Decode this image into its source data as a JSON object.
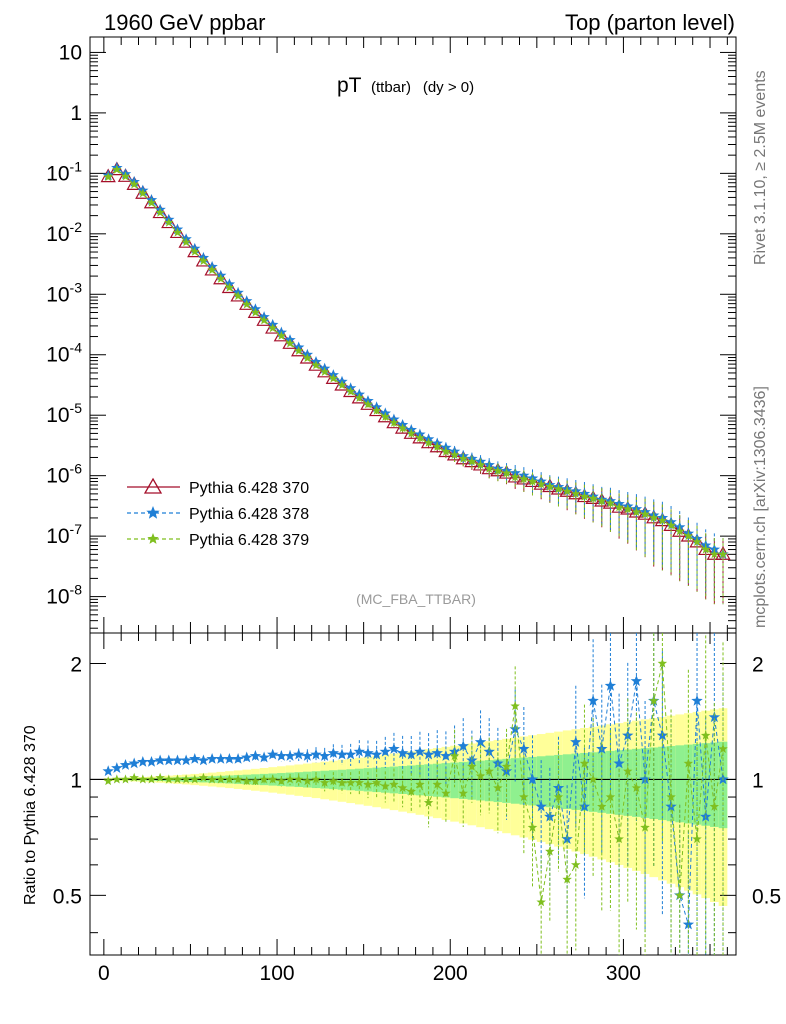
{
  "header": {
    "left": "1960 GeV ppbar",
    "right": "Top (parton level)"
  },
  "side_labels": {
    "rivet": "Rivet 3.1.10, ≥ 2.5M events",
    "mcplots": "mcplots.cern.ch [arXiv:1306.3436]"
  },
  "plot_title": {
    "main": "pT",
    "sub1": "(ttbar)",
    "sub2": "(dy > 0)"
  },
  "analysis_tag": "(MC_FBA_TTBAR)",
  "ratio_ylabel": "Ratio to Pythia 6.428 370",
  "colors": {
    "s370": "#a50f2a",
    "s378": "#1f7fd6",
    "s379": "#7fbf1f",
    "band_inner": "#8ff08f",
    "band_outer": "#ffff99"
  },
  "chart_data": [
    {
      "type": "line",
      "scale": "log",
      "xlim": [
        -8,
        365
      ],
      "ylim": [
        2.5e-09,
        18
      ],
      "x_ticks": [
        0,
        100,
        200,
        300
      ],
      "y_tick_labels": [
        "10",
        "1",
        "10^-1",
        "10^-2",
        "10^-3",
        "10^-4",
        "10^-5",
        "10^-6",
        "10^-7",
        "10^-8"
      ],
      "legend_placement": "bottom-left",
      "series": [
        {
          "name": "Pythia 6.428 370",
          "marker": "triangle",
          "x": [
            2.5,
            7.5,
            12.5,
            17.5,
            22.5,
            27.5,
            32.5,
            37.5,
            42.5,
            47.5,
            52.5,
            57.5,
            62.5,
            67.5,
            72.5,
            77.5,
            82.5,
            87.5,
            92.5,
            97.5,
            102.5,
            107.5,
            112.5,
            117.5,
            122.5,
            127.5,
            132.5,
            137.5,
            142.5,
            147.5,
            152.5,
            157.5,
            162.5,
            167.5,
            172.5,
            177.5,
            182.5,
            187.5,
            192.5,
            197.5,
            202.5,
            207.5,
            212.5,
            217.5,
            222.5,
            227.5,
            232.5,
            237.5,
            242.5,
            247.5,
            252.5,
            257.5,
            262.5,
            267.5,
            272.5,
            277.5,
            282.5,
            287.5,
            292.5,
            297.5,
            302.5,
            307.5,
            312.5,
            317.5,
            322.5,
            327.5,
            332.5,
            337.5,
            342.5,
            347.5,
            352.5,
            357.5
          ],
          "y": [
            0.088,
            0.115,
            0.089,
            0.0655,
            0.0467,
            0.0325,
            0.0224,
            0.0153,
            0.0105,
            0.00725,
            0.00505,
            0.00355,
            0.00252,
            0.0018,
            0.00129,
            0.000935,
            0.00068,
            0.0005,
            0.00037,
            0.000275,
            0.000205,
            0.000154,
            0.000116,
            8.8e-05,
            6.7e-05,
            5.2e-05,
            4.05e-05,
            3.15e-05,
            2.46e-05,
            1.93e-05,
            1.51e-05,
            1.19e-05,
            9.4e-06,
            7.5e-06,
            6.1e-06,
            5e-06,
            4.2e-06,
            3.5e-06,
            3e-06,
            2.5e-06,
            2.2e-06,
            1.9e-06,
            1.7e-06,
            1.5e-06,
            1.3e-06,
            1.2e-06,
            1.1e-06,
            9.5e-07,
            8.8e-07,
            8e-07,
            7.2e-07,
            6.6e-07,
            6e-07,
            5.5e-07,
            5e-07,
            4.5e-07,
            4.2e-07,
            3.8e-07,
            3.5e-07,
            3e-07,
            2.8e-07,
            2.5e-07,
            2.3e-07,
            2e-07,
            1.8e-07,
            1.5e-07,
            1.2e-07,
            1e-07,
            8e-08,
            6e-08,
            5e-08,
            5e-08
          ]
        },
        {
          "name": "Pythia 6.428 378",
          "marker": "star",
          "x": [
            2.5,
            7.5,
            12.5,
            17.5,
            22.5,
            27.5,
            32.5,
            37.5,
            42.5,
            47.5,
            52.5,
            57.5,
            62.5,
            67.5,
            72.5,
            77.5,
            82.5,
            87.5,
            92.5,
            97.5,
            102.5,
            107.5,
            112.5,
            117.5,
            122.5,
            127.5,
            132.5,
            137.5,
            142.5,
            147.5,
            152.5,
            157.5,
            162.5,
            167.5,
            172.5,
            177.5,
            182.5,
            187.5,
            192.5,
            197.5,
            202.5,
            207.5,
            212.5,
            217.5,
            222.5,
            227.5,
            232.5,
            237.5,
            242.5,
            247.5,
            252.5,
            257.5,
            262.5,
            267.5,
            272.5,
            277.5,
            282.5,
            287.5,
            292.5,
            297.5,
            302.5,
            307.5,
            312.5,
            317.5,
            322.5,
            327.5,
            332.5,
            337.5,
            342.5,
            347.5,
            352.5,
            357.5
          ],
          "y": [
            0.092,
            0.123,
            0.097,
            0.0722,
            0.0518,
            0.0362,
            0.025,
            0.0171,
            0.0118,
            0.00815,
            0.00568,
            0.004,
            0.00284,
            0.00203,
            0.00146,
            0.00106,
            0.00077,
            0.000567,
            0.00042,
            0.000312,
            0.000233,
            0.000175,
            0.000132,
            0.0001,
            7.6e-05,
            5.9e-05,
            4.6e-05,
            3.58e-05,
            2.8e-05,
            2.2e-05,
            1.72e-05,
            1.35e-05,
            1.07e-05,
            8.5e-06,
            6.9e-06,
            5.7e-06,
            4.8e-06,
            4e-06,
            3.4e-06,
            2.9e-06,
            2.5e-06,
            2.1e-06,
            1.9e-06,
            1.7e-06,
            1.5e-06,
            1.3e-06,
            1.2e-06,
            1.1e-06,
            1e-06,
            9e-07,
            8e-07,
            7e-07,
            6.5e-07,
            6e-07,
            5.5e-07,
            5e-07,
            4.5e-07,
            4e-07,
            3.8e-07,
            3.4e-07,
            3.1e-07,
            2.8e-07,
            2.5e-07,
            2.2e-07,
            2e-07,
            1.7e-07,
            1.4e-07,
            1.1e-07,
            9e-08,
            7e-08,
            6e-08,
            5e-08
          ]
        },
        {
          "name": "Pythia 6.428 379",
          "marker": "star",
          "x": [
            2.5,
            7.5,
            12.5,
            17.5,
            22.5,
            27.5,
            32.5,
            37.5,
            42.5,
            47.5,
            52.5,
            57.5,
            62.5,
            67.5,
            72.5,
            77.5,
            82.5,
            87.5,
            92.5,
            97.5,
            102.5,
            107.5,
            112.5,
            117.5,
            122.5,
            127.5,
            132.5,
            137.5,
            142.5,
            147.5,
            152.5,
            157.5,
            162.5,
            167.5,
            172.5,
            177.5,
            182.5,
            187.5,
            192.5,
            197.5,
            202.5,
            207.5,
            212.5,
            217.5,
            222.5,
            227.5,
            232.5,
            237.5,
            242.5,
            247.5,
            252.5,
            257.5,
            262.5,
            267.5,
            272.5,
            277.5,
            282.5,
            287.5,
            292.5,
            297.5,
            302.5,
            307.5,
            312.5,
            317.5,
            322.5,
            327.5,
            332.5,
            337.5,
            342.5,
            347.5,
            352.5,
            357.5
          ],
          "y": [
            0.087,
            0.115,
            0.089,
            0.0655,
            0.0467,
            0.0325,
            0.0224,
            0.0153,
            0.0105,
            0.00725,
            0.00505,
            0.00355,
            0.00252,
            0.0018,
            0.00129,
            0.000935,
            0.00068,
            0.0005,
            0.00037,
            0.000275,
            0.000205,
            0.000154,
            0.000116,
            8.8e-05,
            6.7e-05,
            5.2e-05,
            4.05e-05,
            3.15e-05,
            2.46e-05,
            1.93e-05,
            1.51e-05,
            1.19e-05,
            9.4e-06,
            7.5e-06,
            6.1e-06,
            5e-06,
            4.2e-06,
            3.5e-06,
            3e-06,
            2.5e-06,
            2.2e-06,
            1.9e-06,
            1.7e-06,
            1.5e-06,
            1.3e-06,
            1.2e-06,
            1.1e-06,
            9.5e-07,
            8.8e-07,
            8e-07,
            7.2e-07,
            6.6e-07,
            6e-07,
            5.5e-07,
            5e-07,
            4.5e-07,
            4.2e-07,
            3.8e-07,
            3.5e-07,
            3e-07,
            2.8e-07,
            2.5e-07,
            2.3e-07,
            2e-07,
            1.8e-07,
            1.5e-07,
            1.2e-07,
            1e-07,
            8e-08,
            6e-08,
            5e-08,
            5e-08
          ]
        }
      ]
    },
    {
      "type": "line",
      "scale": "log",
      "xlim": [
        -8,
        365
      ],
      "ylim": [
        0.35,
        2.4
      ],
      "ylabel": "Ratio to Pythia 6.428 370",
      "x_ticks": [
        0,
        100,
        200,
        300
      ],
      "y_ticks": [
        0.5,
        1,
        2
      ],
      "reference_line": 1,
      "series": [
        {
          "name": "Pythia 6.428 378",
          "x": [
            2.5,
            7.5,
            12.5,
            17.5,
            22.5,
            27.5,
            32.5,
            37.5,
            42.5,
            47.5,
            52.5,
            57.5,
            62.5,
            67.5,
            72.5,
            77.5,
            82.5,
            87.5,
            92.5,
            97.5,
            102.5,
            107.5,
            112.5,
            117.5,
            122.5,
            127.5,
            132.5,
            137.5,
            142.5,
            147.5,
            152.5,
            157.5,
            162.5,
            167.5,
            172.5,
            177.5,
            182.5,
            187.5,
            192.5,
            197.5,
            202.5,
            207.5,
            212.5,
            217.5,
            222.5,
            227.5,
            232.5,
            237.5,
            242.5,
            247.5,
            252.5,
            257.5,
            262.5,
            267.5,
            272.5,
            277.5,
            282.5,
            287.5,
            292.5,
            297.5,
            302.5,
            307.5,
            312.5,
            317.5,
            322.5,
            327.5,
            332.5,
            337.5,
            342.5,
            347.5,
            352.5,
            357.5
          ],
          "y": [
            1.05,
            1.07,
            1.09,
            1.1,
            1.11,
            1.11,
            1.12,
            1.12,
            1.12,
            1.12,
            1.13,
            1.12,
            1.13,
            1.13,
            1.13,
            1.13,
            1.14,
            1.15,
            1.14,
            1.16,
            1.15,
            1.15,
            1.16,
            1.15,
            1.16,
            1.15,
            1.17,
            1.16,
            1.16,
            1.18,
            1.17,
            1.16,
            1.18,
            1.2,
            1.17,
            1.16,
            1.18,
            1.16,
            1.17,
            1.15,
            1.18,
            1.22,
            1.12,
            1.25,
            1.18,
            1.1,
            1.05,
            1.35,
            1.2,
            1.0,
            0.85,
            0.8,
            0.95,
            0.7,
            1.25,
            0.85,
            1.6,
            1.2,
            1.75,
            1.1,
            1.3,
            1.8,
            1.0,
            1.6,
            1.3,
            0.85,
            0.5,
            0.42,
            1.6,
            0.8,
            1.45,
            1.0
          ]
        },
        {
          "name": "Pythia 6.428 379",
          "x": [
            2.5,
            7.5,
            12.5,
            17.5,
            22.5,
            27.5,
            32.5,
            37.5,
            42.5,
            47.5,
            52.5,
            57.5,
            62.5,
            67.5,
            72.5,
            77.5,
            82.5,
            87.5,
            92.5,
            97.5,
            102.5,
            107.5,
            112.5,
            117.5,
            122.5,
            127.5,
            132.5,
            137.5,
            142.5,
            147.5,
            152.5,
            157.5,
            162.5,
            167.5,
            172.5,
            177.5,
            182.5,
            187.5,
            192.5,
            197.5,
            202.5,
            207.5,
            212.5,
            217.5,
            222.5,
            227.5,
            232.5,
            237.5,
            242.5,
            247.5,
            252.5,
            257.5,
            262.5,
            267.5,
            272.5,
            277.5,
            282.5,
            287.5,
            292.5,
            297.5,
            302.5,
            307.5,
            312.5,
            317.5,
            322.5,
            327.5,
            332.5,
            337.5,
            342.5,
            347.5,
            352.5,
            357.5
          ],
          "y": [
            0.99,
            1.0,
            1.0,
            1.01,
            1.0,
            1.0,
            1.01,
            1.0,
            1.0,
            1.0,
            1.0,
            1.01,
            1.0,
            1.0,
            1.0,
            1.0,
            0.99,
            0.99,
            1.0,
            1.0,
            0.99,
            1.0,
            1.0,
            0.99,
            1.0,
            0.98,
            0.99,
            0.98,
            0.98,
            0.98,
            0.97,
            0.98,
            0.96,
            0.97,
            0.95,
            0.93,
            0.97,
            0.87,
            0.97,
            0.92,
            1.15,
            0.92,
            1.08,
            1.02,
            1.05,
            0.95,
            1.08,
            1.55,
            0.9,
            0.75,
            0.48,
            0.65,
            0.9,
            0.55,
            0.6,
            1.1,
            1.0,
            0.85,
            0.9,
            0.7,
            1.05,
            0.95,
            0.75,
            1.6,
            2.0,
            0.9,
            0.5,
            1.1,
            0.7,
            1.3,
            0.85,
            1.2
          ]
        }
      ]
    }
  ]
}
